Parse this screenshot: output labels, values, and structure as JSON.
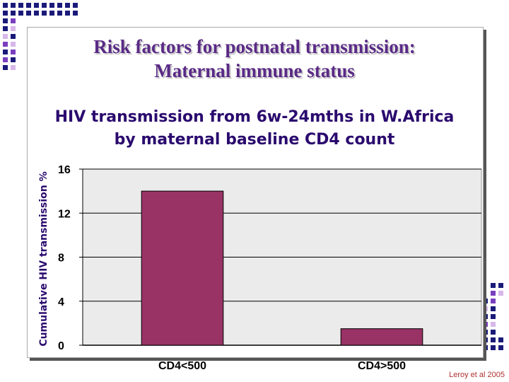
{
  "slide": {
    "title_line1": "Risk factors for postnatal transmission:",
    "title_line2": "Maternal immune status",
    "citation": "Leroy et al 2005"
  },
  "colors": {
    "bar": "#993366",
    "title": "#5a2a86",
    "chart_text": "#2a0a6e",
    "plot_bg": "#ebebeb",
    "deco_navy": "#1a1a7a",
    "deco_violet": "#7a3fbf",
    "deco_lavender": "#d8b7ea"
  },
  "chart_data": {
    "type": "bar",
    "title_line1": "HIV transmission from 6w-24mths in W.Africa",
    "title_line2": "by maternal baseline CD4 count",
    "xlabel": "",
    "ylabel": "Cumulative HIV transmission %",
    "categories": [
      "CD4<500",
      "CD4>500"
    ],
    "values": [
      14,
      1.5
    ],
    "ylim": [
      0,
      16
    ],
    "yticks": [
      0,
      4,
      8,
      12,
      16
    ],
    "grid": true,
    "legend": false
  }
}
